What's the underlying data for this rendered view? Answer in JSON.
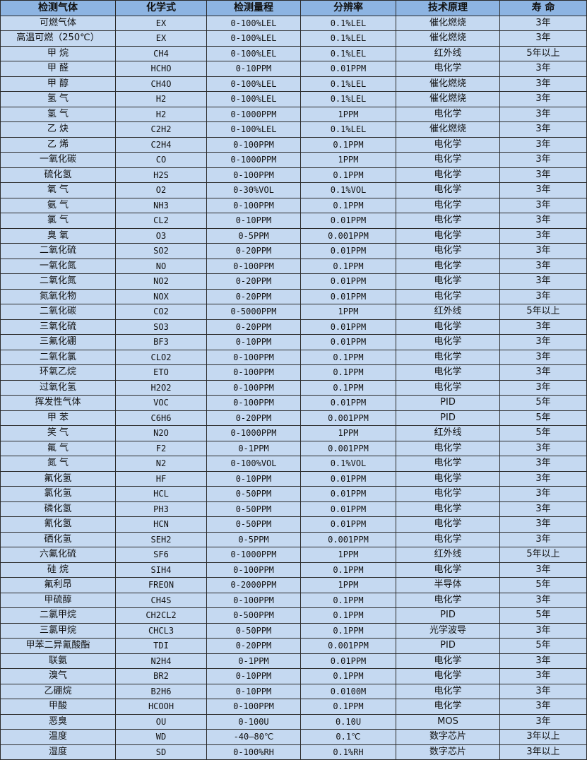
{
  "colors": {
    "header_bg": "#8db4e2",
    "row_bg": "#c5d9f1",
    "border": "#2b2b2b"
  },
  "headers": [
    "检测气体",
    "化学式",
    "检测量程",
    "分辨率",
    "技术原理",
    "寿 命"
  ],
  "rows": [
    [
      "可燃气体",
      "EX",
      "0-100%LEL",
      "0.1%LEL",
      "催化燃烧",
      "3年"
    ],
    [
      "高温可燃（250℃）",
      "EX",
      "0-100%LEL",
      "0.1%LEL",
      "催化燃烧",
      "3年"
    ],
    [
      "甲 烷",
      "CH4",
      "0-100%LEL",
      "0.1%LEL",
      "红外线",
      "5年以上"
    ],
    [
      "甲 醛",
      "HCHO",
      "0-10PPM",
      "0.01PPM",
      "电化学",
      "3年"
    ],
    [
      "甲 醇",
      "CH4O",
      "0-100%LEL",
      "0.1%LEL",
      "催化燃烧",
      "3年"
    ],
    [
      "氢 气",
      "H2",
      "0-100%LEL",
      "0.1%LEL",
      "催化燃烧",
      "3年"
    ],
    [
      "氢 气",
      "H2",
      "0-1000PPM",
      "1PPM",
      "电化学",
      "3年"
    ],
    [
      "乙 炔",
      "C2H2",
      "0-100%LEL",
      "0.1%LEL",
      "催化燃烧",
      "3年"
    ],
    [
      "乙 烯",
      "C2H4",
      "0-100PPM",
      "0.1PPM",
      "电化学",
      "3年"
    ],
    [
      "一氧化碳",
      "CO",
      "0-1000PPM",
      "1PPM",
      "电化学",
      "3年"
    ],
    [
      "硫化氢",
      "H2S",
      "0-100PPM",
      "0.1PPM",
      "电化学",
      "3年"
    ],
    [
      "氧 气",
      "O2",
      "0-30%VOL",
      "0.1%VOL",
      "电化学",
      "3年"
    ],
    [
      "氨 气",
      "NH3",
      "0-100PPM",
      "0.1PPM",
      "电化学",
      "3年"
    ],
    [
      "氯 气",
      "CL2",
      "0-10PPM",
      "0.01PPM",
      "电化学",
      "3年"
    ],
    [
      "臭 氧",
      "O3",
      "0-5PPM",
      "0.001PPM",
      "电化学",
      "3年"
    ],
    [
      "二氧化硫",
      "SO2",
      "0-20PPM",
      "0.01PPM",
      "电化学",
      "3年"
    ],
    [
      "一氧化氮",
      "NO",
      "0-100PPM",
      "0.1PPM",
      "电化学",
      "3年"
    ],
    [
      "二氧化氮",
      "NO2",
      "0-20PPM",
      "0.01PPM",
      "电化学",
      "3年"
    ],
    [
      "氮氧化物",
      "NOX",
      "0-20PPM",
      "0.01PPM",
      "电化学",
      "3年"
    ],
    [
      "二氧化碳",
      "CO2",
      "0-5000PPM",
      "1PPM",
      "红外线",
      "5年以上"
    ],
    [
      "三氧化硫",
      "SO3",
      "0-20PPM",
      "0.01PPM",
      "电化学",
      "3年"
    ],
    [
      "三氟化硼",
      "BF3",
      "0-10PPM",
      "0.01PPM",
      "电化学",
      "3年"
    ],
    [
      "二氧化氯",
      "CLO2",
      "0-100PPM",
      "0.1PPM",
      "电化学",
      "3年"
    ],
    [
      "环氧乙烷",
      "ETO",
      "0-100PPM",
      "0.1PPM",
      "电化学",
      "3年"
    ],
    [
      "过氧化氢",
      "H2O2",
      "0-100PPM",
      "0.1PPM",
      "电化学",
      "3年"
    ],
    [
      "挥发性气体",
      "VOC",
      "0-100PPM",
      "0.01PPM",
      "PID",
      "5年"
    ],
    [
      "甲 苯",
      "C6H6",
      "0-20PPM",
      "0.001PPM",
      "PID",
      "5年"
    ],
    [
      "笑 气",
      "N2O",
      "0-1000PPM",
      "1PPM",
      "红外线",
      "5年"
    ],
    [
      "氟 气",
      "F2",
      "0-1PPM",
      "0.001PPM",
      "电化学",
      "3年"
    ],
    [
      "氮 气",
      "N2",
      "0-100%VOL",
      "0.1%VOL",
      "电化学",
      "3年"
    ],
    [
      "氟化氢",
      "HF",
      "0-10PPM",
      "0.01PPM",
      "电化学",
      "3年"
    ],
    [
      "氯化氢",
      "HCL",
      "0-50PPM",
      "0.01PPM",
      "电化学",
      "3年"
    ],
    [
      "磷化氢",
      "PH3",
      "0-50PPM",
      "0.01PPM",
      "电化学",
      "3年"
    ],
    [
      "氰化氢",
      "HCN",
      "0-50PPM",
      "0.01PPM",
      "电化学",
      "3年"
    ],
    [
      "硒化氢",
      "SEH2",
      "0-5PPM",
      "0.001PPM",
      "电化学",
      "3年"
    ],
    [
      "六氟化硫",
      "SF6",
      "0-1000PPM",
      "1PPM",
      "红外线",
      "5年以上"
    ],
    [
      "硅 烷",
      "SIH4",
      "0-100PPM",
      "0.1PPM",
      "电化学",
      "3年"
    ],
    [
      "氟利昂",
      "FREON",
      "0-2000PPM",
      "1PPM",
      "半导体",
      "5年"
    ],
    [
      "甲硫醇",
      "CH4S",
      "0-100PPM",
      "0.1PPM",
      "电化学",
      "3年"
    ],
    [
      "二氯甲烷",
      "CH2CL2",
      "0-500PPM",
      "0.1PPM",
      "PID",
      "5年"
    ],
    [
      "三氯甲烷",
      "CHCL3",
      "0-50PPM",
      "0.1PPM",
      "光学波导",
      "3年"
    ],
    [
      "甲苯二异氰酸酯",
      "TDI",
      "0-20PPM",
      "0.001PPM",
      "PID",
      "5年"
    ],
    [
      "联氨",
      "N2H4",
      "0-1PPM",
      "0.01PPM",
      "电化学",
      "3年"
    ],
    [
      "溴气",
      "BR2",
      "0-10PPM",
      "0.1PPM",
      "电化学",
      "3年"
    ],
    [
      "乙硼烷",
      "B2H6",
      "0-10PPM",
      "0.0100M",
      "电化学",
      "3年"
    ],
    [
      "甲酸",
      "HCOOH",
      "0-100PPM",
      "0.1PPM",
      "电化学",
      "3年"
    ],
    [
      "恶臭",
      "OU",
      "0-100U",
      "0.10U",
      "MOS",
      "3年"
    ],
    [
      "温度",
      "WD",
      "-40—80℃",
      "0.1℃",
      "数字芯片",
      "3年以上"
    ],
    [
      "湿度",
      "SD",
      "0-100%RH",
      "0.1%RH",
      "数字芯片",
      "3年以上"
    ]
  ]
}
